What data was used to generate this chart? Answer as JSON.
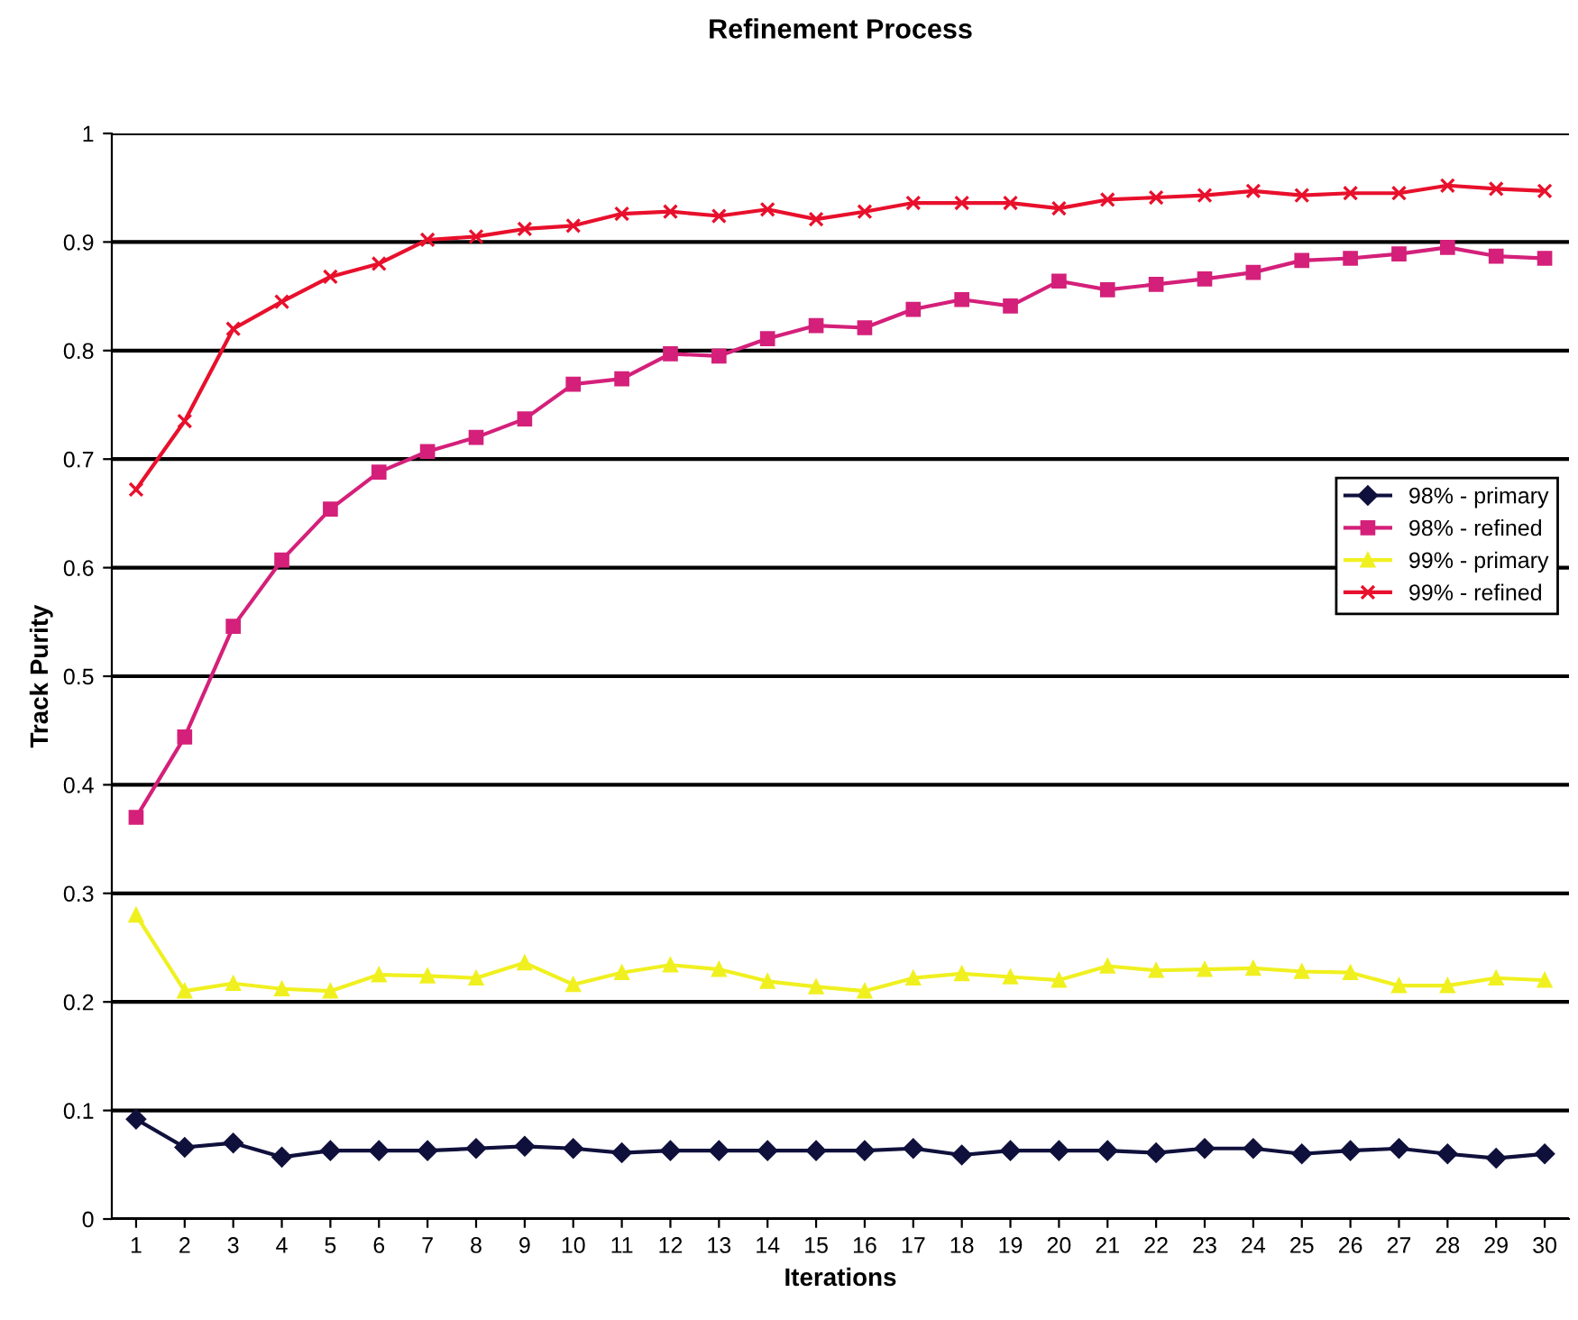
{
  "chart_data": {
    "type": "line",
    "title": "Refinement Process",
    "xlabel": "Iterations",
    "ylabel": "Track Purity",
    "categories": [
      "1",
      "2",
      "3",
      "4",
      "5",
      "6",
      "7",
      "8",
      "9",
      "10",
      "11",
      "12",
      "13",
      "14",
      "15",
      "16",
      "17",
      "18",
      "19",
      "20",
      "21",
      "22",
      "23",
      "24",
      "25",
      "26",
      "27",
      "28",
      "29",
      "30"
    ],
    "series": [
      {
        "name": "98% - primary",
        "color": "#10103c",
        "marker": "diamond",
        "values": [
          0.092,
          0.066,
          0.07,
          0.057,
          0.063,
          0.063,
          0.063,
          0.065,
          0.067,
          0.065,
          0.061,
          0.063,
          0.063,
          0.063,
          0.063,
          0.063,
          0.065,
          0.059,
          0.063,
          0.063,
          0.063,
          0.061,
          0.065,
          0.065,
          0.06,
          0.063,
          0.065,
          0.06,
          0.056,
          0.06
        ]
      },
      {
        "name": "98% - refined",
        "color": "#d4207a",
        "marker": "square",
        "values": [
          0.37,
          0.444,
          0.546,
          0.607,
          0.654,
          0.688,
          0.707,
          0.72,
          0.737,
          0.769,
          0.774,
          0.797,
          0.795,
          0.811,
          0.823,
          0.821,
          0.838,
          0.847,
          0.841,
          0.864,
          0.856,
          0.861,
          0.866,
          0.872,
          0.883,
          0.885,
          0.889,
          0.895,
          0.887,
          0.885
        ]
      },
      {
        "name": "99% - primary",
        "color": "#f0f020",
        "marker": "triangle",
        "values": [
          0.28,
          0.21,
          0.217,
          0.212,
          0.21,
          0.225,
          0.224,
          0.222,
          0.236,
          0.216,
          0.227,
          0.234,
          0.23,
          0.219,
          0.214,
          0.21,
          0.222,
          0.226,
          0.223,
          0.22,
          0.233,
          0.229,
          0.23,
          0.231,
          0.228,
          0.227,
          0.215,
          0.215,
          0.222,
          0.22
        ]
      },
      {
        "name": "99% - refined",
        "color": "#e8102c",
        "marker": "cross",
        "values": [
          0.672,
          0.735,
          0.82,
          0.845,
          0.868,
          0.88,
          0.902,
          0.905,
          0.912,
          0.915,
          0.926,
          0.928,
          0.924,
          0.93,
          0.921,
          0.928,
          0.936,
          0.936,
          0.936,
          0.931,
          0.939,
          0.941,
          0.943,
          0.947,
          0.943,
          0.945,
          0.945,
          0.952,
          0.949,
          0.947
        ]
      }
    ],
    "ylim": [
      0,
      1
    ],
    "yticks": [
      0,
      0.1,
      0.2,
      0.3,
      0.4,
      0.5,
      0.6,
      0.7,
      0.8,
      0.9,
      1
    ],
    "grid": "y",
    "legend": "right",
    "line_style": "solid"
  }
}
